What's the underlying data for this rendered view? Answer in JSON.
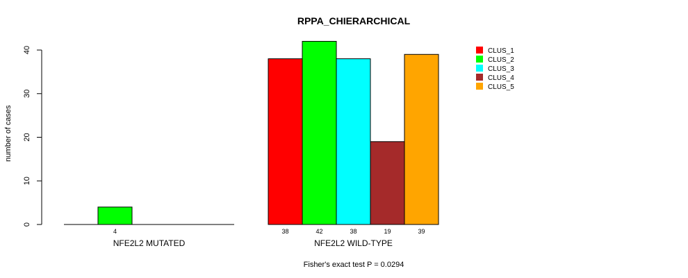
{
  "chart_data": {
    "type": "bar",
    "title": "RPPA_CHIERARCHICAL",
    "ylabel": "number of cases",
    "xlabel": "",
    "ylim": [
      0,
      40
    ],
    "yticks": [
      0,
      10,
      20,
      30,
      40
    ],
    "categories": [
      "NFE2L2 MUTATED",
      "NFE2L2 WILD-TYPE"
    ],
    "series": [
      {
        "name": "CLUS_1",
        "color": "#ff0000",
        "values": [
          0,
          38
        ]
      },
      {
        "name": "CLUS_2",
        "color": "#00ff00",
        "values": [
          4,
          42
        ]
      },
      {
        "name": "CLUS_3",
        "color": "#00ffff",
        "values": [
          0,
          38
        ]
      },
      {
        "name": "CLUS_4",
        "color": "#a52a2a",
        "values": [
          0,
          19
        ]
      },
      {
        "name": "CLUS_5",
        "color": "#ffa500",
        "values": [
          0,
          39
        ]
      }
    ],
    "bar_labels": [
      [
        "",
        "4",
        "",
        "",
        ""
      ],
      [
        "38",
        "42",
        "38",
        "19",
        "39"
      ]
    ],
    "legend_position": "top-right",
    "footnote": "Fisher's exact test P = 0.0294"
  }
}
